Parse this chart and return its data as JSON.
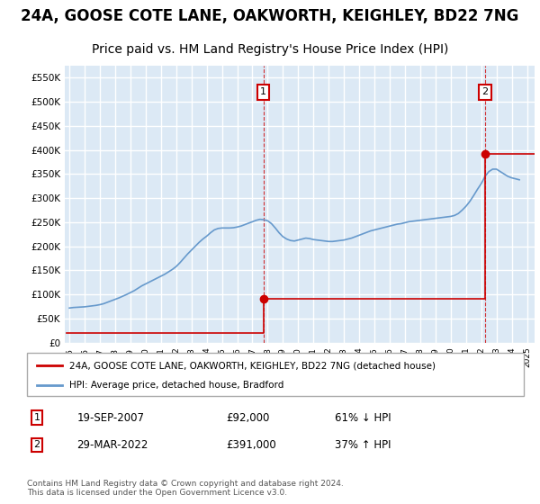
{
  "title": "24A, GOOSE COTE LANE, OAKWORTH, KEIGHLEY, BD22 7NG",
  "subtitle": "Price paid vs. HM Land Registry's House Price Index (HPI)",
  "title_fontsize": 12,
  "subtitle_fontsize": 10,
  "background_color": "#dce9f5",
  "plot_bg_color": "#dce9f5",
  "grid_color": "#ffffff",
  "ylabel_ticks": [
    "£0",
    "£50K",
    "£100K",
    "£150K",
    "£200K",
    "£250K",
    "£300K",
    "£350K",
    "£400K",
    "£450K",
    "£500K",
    "£550K"
  ],
  "ytick_values": [
    0,
    50000,
    100000,
    150000,
    200000,
    250000,
    300000,
    350000,
    400000,
    450000,
    500000,
    550000
  ],
  "ylim": [
    0,
    575000
  ],
  "xlim_start": 1995.0,
  "xlim_end": 2025.5,
  "xtick_years": [
    1995,
    1996,
    1997,
    1998,
    1999,
    2000,
    2001,
    2002,
    2003,
    2004,
    2005,
    2006,
    2007,
    2008,
    2009,
    2010,
    2011,
    2012,
    2013,
    2014,
    2015,
    2016,
    2017,
    2018,
    2019,
    2020,
    2021,
    2022,
    2023,
    2024,
    2025
  ],
  "sale1_x": 2007.72,
  "sale1_y": 92000,
  "sale1_label": "1",
  "sale2_x": 2022.24,
  "sale2_y": 391000,
  "sale2_label": "2",
  "sale_color": "#cc0000",
  "hpi_color": "#6699cc",
  "sale_line_color": "#cc0000",
  "marker_box_color": "#cc0000",
  "dashed_color": "#cc0000",
  "legend_sale_label": "24A, GOOSE COTE LANE, OAKWORTH, KEIGHLEY, BD22 7NG (detached house)",
  "legend_hpi_label": "HPI: Average price, detached house, Bradford",
  "note1_label": "1",
  "note1_date": "19-SEP-2007",
  "note1_price": "£92,000",
  "note1_hpi": "61% ↓ HPI",
  "note2_label": "2",
  "note2_date": "29-MAR-2022",
  "note2_price": "£391,000",
  "note2_hpi": "37% ↑ HPI",
  "footer": "Contains HM Land Registry data © Crown copyright and database right 2024.\nThis data is licensed under the Open Government Licence v3.0.",
  "hpi_data_x": [
    1995.0,
    1995.25,
    1995.5,
    1995.75,
    1996.0,
    1996.25,
    1996.5,
    1996.75,
    1997.0,
    1997.25,
    1997.5,
    1997.75,
    1998.0,
    1998.25,
    1998.5,
    1998.75,
    1999.0,
    1999.25,
    1999.5,
    1999.75,
    2000.0,
    2000.25,
    2000.5,
    2000.75,
    2001.0,
    2001.25,
    2001.5,
    2001.75,
    2002.0,
    2002.25,
    2002.5,
    2002.75,
    2003.0,
    2003.25,
    2003.5,
    2003.75,
    2004.0,
    2004.25,
    2004.5,
    2004.75,
    2005.0,
    2005.25,
    2005.5,
    2005.75,
    2006.0,
    2006.25,
    2006.5,
    2006.75,
    2007.0,
    2007.25,
    2007.5,
    2007.75,
    2008.0,
    2008.25,
    2008.5,
    2008.75,
    2009.0,
    2009.25,
    2009.5,
    2009.75,
    2010.0,
    2010.25,
    2010.5,
    2010.75,
    2011.0,
    2011.25,
    2011.5,
    2011.75,
    2012.0,
    2012.25,
    2012.5,
    2012.75,
    2013.0,
    2013.25,
    2013.5,
    2013.75,
    2014.0,
    2014.25,
    2014.5,
    2014.75,
    2015.0,
    2015.25,
    2015.5,
    2015.75,
    2016.0,
    2016.25,
    2016.5,
    2016.75,
    2017.0,
    2017.25,
    2017.5,
    2017.75,
    2018.0,
    2018.25,
    2018.5,
    2018.75,
    2019.0,
    2019.25,
    2019.5,
    2019.75,
    2020.0,
    2020.25,
    2020.5,
    2020.75,
    2021.0,
    2021.25,
    2021.5,
    2021.75,
    2022.0,
    2022.25,
    2022.5,
    2022.75,
    2023.0,
    2023.25,
    2023.5,
    2023.75,
    2024.0,
    2024.25,
    2024.5
  ],
  "hpi_data_y": [
    72000,
    73000,
    73500,
    74000,
    74500,
    75500,
    76500,
    77500,
    79000,
    81000,
    84000,
    87000,
    90000,
    93000,
    96500,
    100000,
    104000,
    108000,
    113000,
    118000,
    122000,
    126000,
    130000,
    134000,
    138000,
    142000,
    147000,
    152000,
    158000,
    166000,
    175000,
    184000,
    192000,
    200000,
    208000,
    215000,
    221000,
    228000,
    234000,
    237000,
    238000,
    238000,
    238000,
    238500,
    240000,
    242000,
    245000,
    248000,
    251000,
    254000,
    256000,
    255000,
    253000,
    247000,
    238000,
    228000,
    220000,
    215000,
    212000,
    211000,
    213000,
    215000,
    217000,
    216000,
    214000,
    213000,
    212000,
    211000,
    210000,
    210000,
    211000,
    212000,
    213000,
    215000,
    217000,
    220000,
    223000,
    226000,
    229000,
    232000,
    234000,
    236000,
    238000,
    240000,
    242000,
    244000,
    246000,
    247000,
    249000,
    251000,
    252000,
    253000,
    254000,
    255000,
    256000,
    257000,
    258000,
    259000,
    260000,
    261000,
    262000,
    264000,
    268000,
    275000,
    283000,
    293000,
    305000,
    318000,
    330000,
    345000,
    355000,
    360000,
    360000,
    355000,
    350000,
    345000,
    342000,
    340000,
    338000
  ],
  "sale_data_x": [
    1995.0,
    2007.72,
    2022.24,
    2024.5
  ],
  "sale_data_y": [
    20000,
    92000,
    391000,
    391000
  ]
}
